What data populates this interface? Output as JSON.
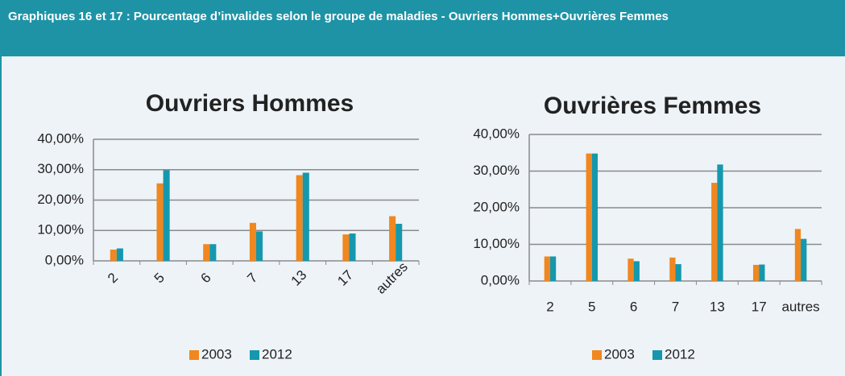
{
  "header": {
    "title": "Graphiques 16 et 17 : Pourcentage d’invalides selon le groupe de maladies - Ouvriers Hommes+Ouvrières Femmes"
  },
  "chart_data": [
    {
      "type": "bar",
      "title": "Ouvriers Hommes",
      "categories": [
        "2",
        "5",
        "6",
        "7",
        "13",
        "17",
        "autres"
      ],
      "series": [
        {
          "name": "2003",
          "color": "#f0871f",
          "values": [
            3.7,
            25.5,
            5.5,
            12.5,
            28.2,
            8.7,
            14.7
          ]
        },
        {
          "name": "2012",
          "color": "#1598ad",
          "values": [
            4.1,
            29.8,
            5.5,
            9.7,
            29.0,
            9.0,
            12.2
          ]
        }
      ],
      "ylim": [
        0,
        40
      ],
      "yticks": [
        {
          "value": 0,
          "label": "0,00%"
        },
        {
          "value": 10,
          "label": "10,00%"
        },
        {
          "value": 20,
          "label": "20,00%"
        },
        {
          "value": 30,
          "label": "30,00%"
        },
        {
          "value": 40,
          "label": "40,00%"
        }
      ],
      "grid": true,
      "legend": "bottom",
      "xlabel_rotation": -45
    },
    {
      "type": "bar",
      "title": "Ouvrières Femmes",
      "categories": [
        "2",
        "5",
        "6",
        "7",
        "13",
        "17",
        "autres"
      ],
      "series": [
        {
          "name": "2003",
          "color": "#f0871f",
          "values": [
            6.7,
            34.8,
            6.1,
            6.4,
            26.8,
            4.4,
            14.2
          ]
        },
        {
          "name": "2012",
          "color": "#1598ad",
          "values": [
            6.7,
            34.8,
            5.4,
            4.6,
            31.8,
            4.5,
            11.5
          ]
        }
      ],
      "ylim": [
        0,
        40
      ],
      "yticks": [
        {
          "value": 0,
          "label": "0,00%"
        },
        {
          "value": 10,
          "label": "10,00%"
        },
        {
          "value": 20,
          "label": "20,00%"
        },
        {
          "value": 30,
          "label": "30,00%"
        },
        {
          "value": 40,
          "label": "40,00%"
        }
      ],
      "grid": true,
      "legend": "bottom",
      "xlabel_rotation": 0
    }
  ]
}
